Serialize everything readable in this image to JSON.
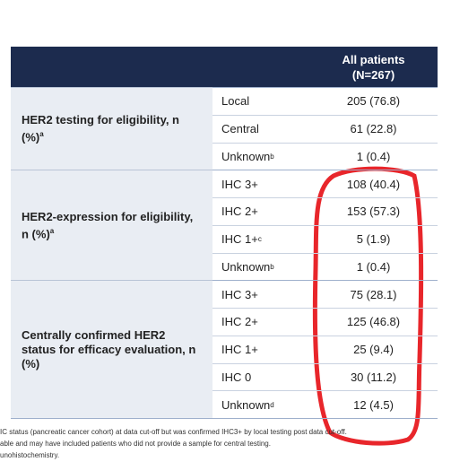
{
  "table": {
    "header": {
      "title": "All patients",
      "subtitle": "(N=267)"
    },
    "groups": [
      {
        "label": "HER2 testing for eligibility, n (%)",
        "sup": "a",
        "rows": [
          {
            "label": "Local",
            "value": "205 (76.8)"
          },
          {
            "label": "Central",
            "value": "61 (22.8)"
          },
          {
            "label": "Unknown",
            "sup": "b",
            "value": "1 (0.4)"
          }
        ]
      },
      {
        "label": "HER2-expression for eligibility, n (%)",
        "sup": "a",
        "rows": [
          {
            "label": "IHC 3+",
            "value": "108 (40.4)"
          },
          {
            "label": "IHC 2+",
            "value": "153 (57.3)"
          },
          {
            "label": "IHC 1+",
            "sup": "c",
            "value": "5 (1.9)"
          },
          {
            "label": "Unknown",
            "sup": "b",
            "value": "1 (0.4)"
          }
        ]
      },
      {
        "label": "Centrally confirmed HER2 status for efficacy evaluation, n (%)",
        "rows": [
          {
            "label": "IHC 3+",
            "value": "75 (28.1)"
          },
          {
            "label": "IHC 2+",
            "value": "125 (46.8)"
          },
          {
            "label": "IHC 1+",
            "value": "25 (9.4)"
          },
          {
            "label": "IHC 0",
            "value": "30 (11.2)"
          },
          {
            "label": "Unknown",
            "sup": "d",
            "value": "12 (4.5)"
          }
        ]
      }
    ]
  },
  "footnotes": [
    "IC status (pancreatic cancer cohort) at data cut-off but was confirmed IHC3+ by local testing post data cut-off.",
    "able and may have included patients who did not provide a sample for central testing.",
    "unohistochemistry."
  ]
}
